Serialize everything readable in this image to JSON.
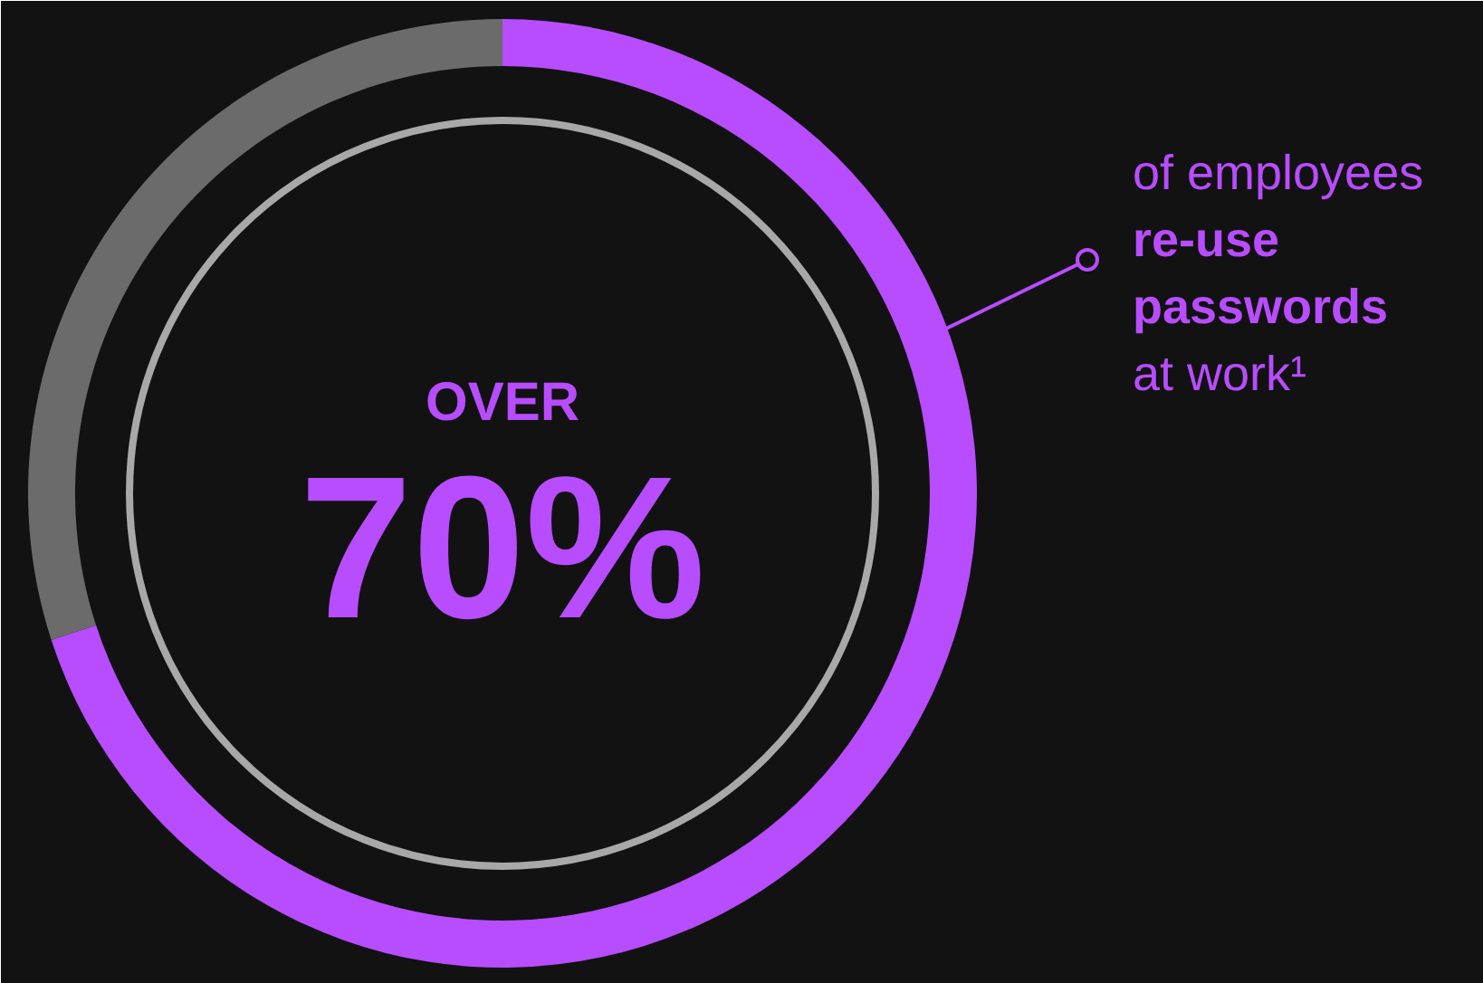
{
  "chart_data": {
    "type": "donut",
    "categories": [
      null,
      null
    ],
    "values": [
      70,
      30
    ],
    "colors": [
      "#b84cff",
      "#6b6b6b"
    ],
    "value_labels": [
      "70%",
      null
    ],
    "annotations": [
      "OVER",
      "of employees\nre-use\npasswords\nat work¹"
    ]
  }
}
